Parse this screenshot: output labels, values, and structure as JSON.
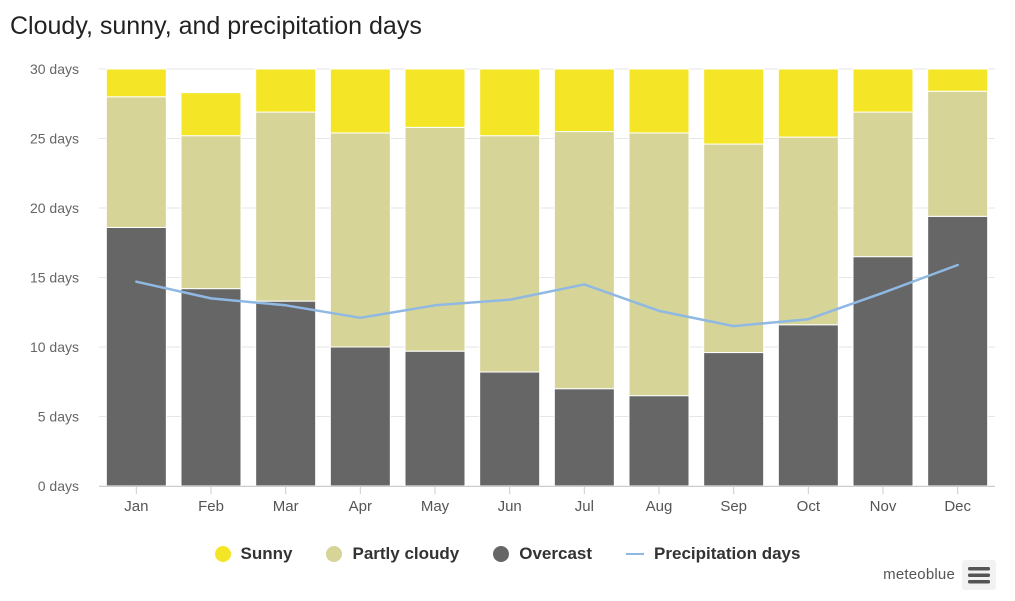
{
  "chart_data": {
    "type": "bar",
    "stacked": true,
    "title": "Cloudy, sunny, and precipitation days",
    "categories": [
      "Jan",
      "Feb",
      "Mar",
      "Apr",
      "May",
      "Jun",
      "Jul",
      "Aug",
      "Sep",
      "Oct",
      "Nov",
      "Dec"
    ],
    "yticks": [
      "0 days",
      "5 days",
      "10 days",
      "15 days",
      "20 days",
      "25 days",
      "30 days"
    ],
    "ylim": [
      0,
      30
    ],
    "series": [
      {
        "name": "Overcast",
        "color": "#666666",
        "values": [
          18.6,
          14.2,
          13.3,
          10.0,
          9.7,
          8.2,
          7.0,
          6.5,
          9.6,
          11.6,
          16.5,
          19.4
        ]
      },
      {
        "name": "Partly cloudy",
        "color": "#d7d497",
        "values": [
          9.4,
          11.0,
          13.6,
          15.4,
          16.1,
          17.0,
          18.5,
          18.9,
          15.0,
          13.5,
          10.4,
          9.0
        ]
      },
      {
        "name": "Sunny",
        "color": "#f4e627",
        "values": [
          2.0,
          3.1,
          3.1,
          4.6,
          4.2,
          4.8,
          4.5,
          4.6,
          5.4,
          4.9,
          3.1,
          1.6
        ]
      }
    ],
    "line_series": {
      "name": "Precipitation days",
      "color": "#8fb9e3",
      "values": [
        14.7,
        13.5,
        13.0,
        12.1,
        13.0,
        13.4,
        14.5,
        12.6,
        11.5,
        12.0,
        13.9,
        15.9
      ]
    }
  },
  "legend": [
    {
      "label": "Sunny",
      "color": "#f4e627",
      "shape": "dot"
    },
    {
      "label": "Partly cloudy",
      "color": "#d7d497",
      "shape": "dot"
    },
    {
      "label": "Overcast",
      "color": "#666666",
      "shape": "dot"
    },
    {
      "label": "Precipitation days",
      "color": "#8fb9e3",
      "shape": "line"
    }
  ],
  "credit": "meteoblue",
  "menu": {
    "icon": "hamburger-menu-icon"
  }
}
